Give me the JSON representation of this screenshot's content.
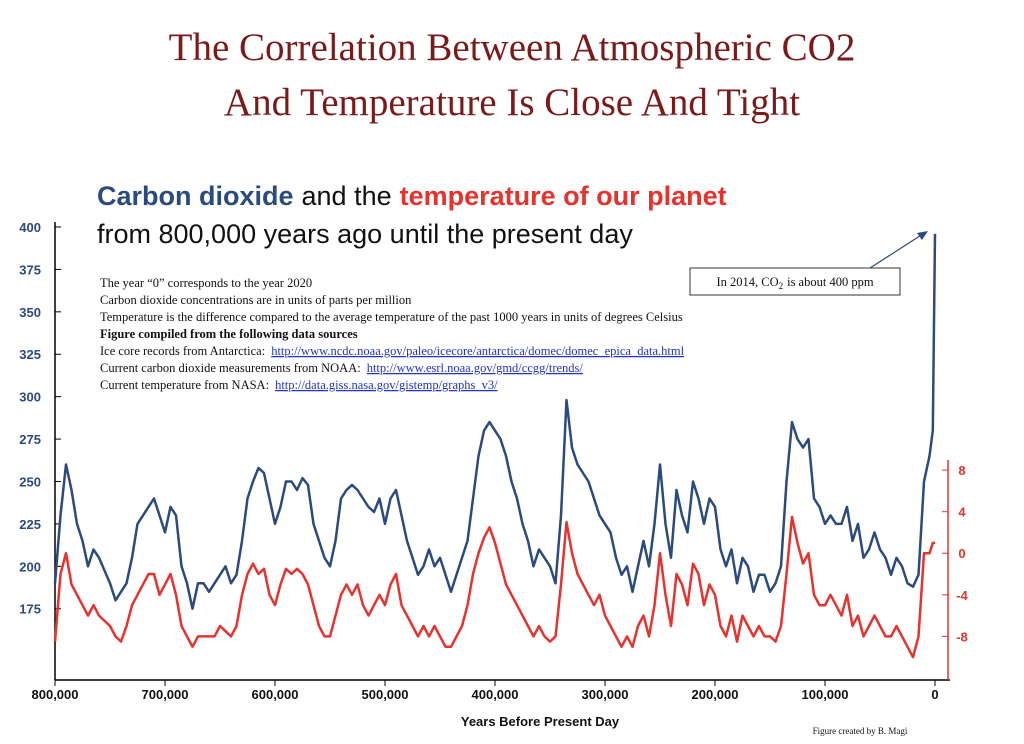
{
  "slide_title": [
    "The Correlation Between Atmospheric CO2",
    "And Temperature Is Close And Tight"
  ],
  "chart_data": {
    "type": "line",
    "title_segments": [
      {
        "text": "Carbon dioxide",
        "color": "#2b4a7e",
        "bold": true
      },
      {
        "text": "and the",
        "color": "#111111",
        "bold": false
      },
      {
        "text": "temperature of our planet",
        "color": "#e8322e",
        "bold": true
      }
    ],
    "subtitle": "from 800,000 years ago until the present day",
    "notes": [
      {
        "text": "The year “0” corresponds to the year 2020",
        "bold": false
      },
      {
        "text": "Carbon dioxide concentrations are in units of parts per million",
        "bold": false
      },
      {
        "text": "Temperature is the difference compared to the average temperature of the past 1000 years in units of degrees Celsius",
        "bold": false
      },
      {
        "text": "Figure compiled from the following data sources",
        "bold": true
      },
      {
        "text": "Ice core records from Antarctica:",
        "url": "http://www.ncdc.noaa.gov/paleo/icecore/antarctica/domec/domec_epica_data.html",
        "bold": false
      },
      {
        "text": "Current carbon dioxide measurements from NOAA:",
        "url": "http://www.esrl.noaa.gov/gmd/ccgg/trends/",
        "bold": false
      },
      {
        "text": "Current temperature from NASA:",
        "url": "http://data.giss.nasa.gov/gistemp/graphs_v3/",
        "bold": false
      }
    ],
    "annotation": {
      "text_before": "In 2014, CO",
      "subscript": "2",
      "text_after": "is about 400 ppm"
    },
    "xlabel": "Years Before Present Day",
    "credit": "Figure created by B. Magi",
    "xlim": [
      800000,
      0
    ],
    "xticks": [
      {
        "value": 800000,
        "label": "800,000"
      },
      {
        "value": 700000,
        "label": "700,000"
      },
      {
        "value": 600000,
        "label": "600,000"
      },
      {
        "value": 500000,
        "label": "500,000"
      },
      {
        "value": 400000,
        "label": "400,000"
      },
      {
        "value": 300000,
        "label": "300,000"
      },
      {
        "value": 200000,
        "label": "200,000"
      },
      {
        "value": 100000,
        "label": "100,000"
      },
      0
    ],
    "ylim": [
      133,
      400
    ],
    "yticks": [
      175,
      200,
      225,
      250,
      275,
      300,
      325,
      350,
      375,
      400
    ],
    "y2lim": [
      -12.2,
      31.4
    ],
    "y2ticks": [
      8,
      4,
      0,
      -4,
      -8
    ],
    "x": [
      800000,
      795000,
      790000,
      785000,
      780000,
      775000,
      770000,
      765000,
      760000,
      750000,
      745000,
      740000,
      735000,
      730000,
      725000,
      720000,
      715000,
      710000,
      705000,
      700000,
      695000,
      690000,
      685000,
      680000,
      675000,
      670000,
      665000,
      660000,
      655000,
      650000,
      645000,
      640000,
      635000,
      630000,
      625000,
      620000,
      615000,
      610000,
      605000,
      600000,
      595000,
      590000,
      585000,
      580000,
      575000,
      570000,
      565000,
      560000,
      555000,
      550000,
      545000,
      540000,
      535000,
      530000,
      525000,
      520000,
      515000,
      510000,
      505000,
      500000,
      495000,
      490000,
      485000,
      480000,
      475000,
      470000,
      465000,
      460000,
      455000,
      450000,
      445000,
      440000,
      435000,
      430000,
      425000,
      420000,
      415000,
      410000,
      405000,
      400000,
      395000,
      390000,
      385000,
      380000,
      375000,
      370000,
      365000,
      360000,
      355000,
      350000,
      345000,
      340000,
      335000,
      330000,
      325000,
      320000,
      315000,
      310000,
      305000,
      300000,
      295000,
      290000,
      285000,
      280000,
      275000,
      270000,
      265000,
      260000,
      255000,
      250000,
      245000,
      240000,
      235000,
      230000,
      225000,
      220000,
      215000,
      210000,
      205000,
      200000,
      195000,
      190000,
      185000,
      180000,
      175000,
      170000,
      165000,
      160000,
      155000,
      150000,
      145000,
      140000,
      135000,
      130000,
      125000,
      120000,
      115000,
      110000,
      105000,
      100000,
      95000,
      90000,
      85000,
      80000,
      75000,
      70000,
      65000,
      60000,
      55000,
      50000,
      45000,
      40000,
      35000,
      30000,
      25000,
      20000,
      15000,
      10000,
      5000,
      2000,
      0
    ],
    "series": [
      {
        "name": "Carbon dioxide",
        "color": "#2b4a7e",
        "axis": "y",
        "values": [
          190,
          230,
          260,
          245,
          225,
          215,
          200,
          210,
          205,
          190,
          180,
          185,
          190,
          205,
          225,
          230,
          235,
          240,
          230,
          220,
          235,
          230,
          200,
          190,
          175,
          190,
          190,
          185,
          190,
          195,
          200,
          190,
          195,
          215,
          240,
          250,
          258,
          255,
          240,
          225,
          235,
          250,
          250,
          245,
          252,
          248,
          225,
          215,
          205,
          200,
          215,
          240,
          245,
          248,
          245,
          240,
          235,
          232,
          240,
          225,
          240,
          245,
          230,
          215,
          205,
          195,
          200,
          210,
          200,
          205,
          195,
          185,
          195,
          205,
          215,
          240,
          265,
          280,
          285,
          280,
          275,
          265,
          250,
          240,
          225,
          215,
          200,
          210,
          205,
          200,
          190,
          230,
          298,
          270,
          260,
          255,
          250,
          240,
          230,
          225,
          220,
          205,
          195,
          200,
          185,
          200,
          215,
          200,
          225,
          260,
          225,
          205,
          245,
          230,
          220,
          250,
          240,
          225,
          240,
          235,
          210,
          200,
          210,
          190,
          205,
          200,
          185,
          195,
          195,
          185,
          190,
          200,
          250,
          285,
          275,
          270,
          275,
          240,
          235,
          225,
          230,
          225,
          225,
          235,
          215,
          225,
          205,
          210,
          220,
          210,
          205,
          195,
          205,
          200,
          190,
          188,
          195,
          250,
          265,
          280,
          396
        ]
      },
      {
        "name": "temperature of our planet",
        "color": "#e8322e",
        "axis": "y2",
        "values": [
          -8.5,
          -2,
          0,
          -3,
          -4,
          -5,
          -6,
          -5,
          -6,
          -7,
          -8,
          -8.5,
          -7,
          -5,
          -4,
          -3,
          -2,
          -2,
          -4,
          -3,
          -2,
          -4,
          -7,
          -8,
          -9,
          -8,
          -8,
          -8,
          -8,
          -7,
          -7.5,
          -8,
          -7,
          -4,
          -2,
          -1,
          -2,
          -1.5,
          -4,
          -5,
          -3,
          -1.5,
          -2,
          -1.5,
          -2,
          -3,
          -5,
          -7,
          -8,
          -8,
          -6,
          -4,
          -3,
          -4,
          -3,
          -5,
          -6,
          -5,
          -4,
          -5,
          -3,
          -2,
          -5,
          -6,
          -7,
          -8,
          -7,
          -8,
          -7,
          -8,
          -9,
          -9,
          -8,
          -7,
          -5,
          -2,
          0,
          1.5,
          2.5,
          1,
          -1,
          -3,
          -4,
          -5,
          -6,
          -7,
          -8,
          -7,
          -8,
          -8.5,
          -8,
          -3,
          3,
          0,
          -2,
          -3,
          -4,
          -5,
          -4,
          -6,
          -7,
          -8,
          -9,
          -8,
          -9,
          -7,
          -6,
          -8,
          -5,
          0,
          -4,
          -7,
          -2,
          -3,
          -5,
          -1,
          -2,
          -5,
          -3,
          -4,
          -7,
          -8,
          -6,
          -8.5,
          -6,
          -7,
          -8,
          -7,
          -8,
          -8,
          -8.5,
          -7,
          -2,
          3.5,
          1,
          -1,
          0,
          -4,
          -5,
          -5,
          -4,
          -5,
          -6,
          -4,
          -7,
          -6,
          -8,
          -7,
          -6,
          -7,
          -8,
          -8,
          -7,
          -8,
          -9,
          -10,
          -8,
          0,
          0,
          1,
          1
        ]
      }
    ]
  }
}
